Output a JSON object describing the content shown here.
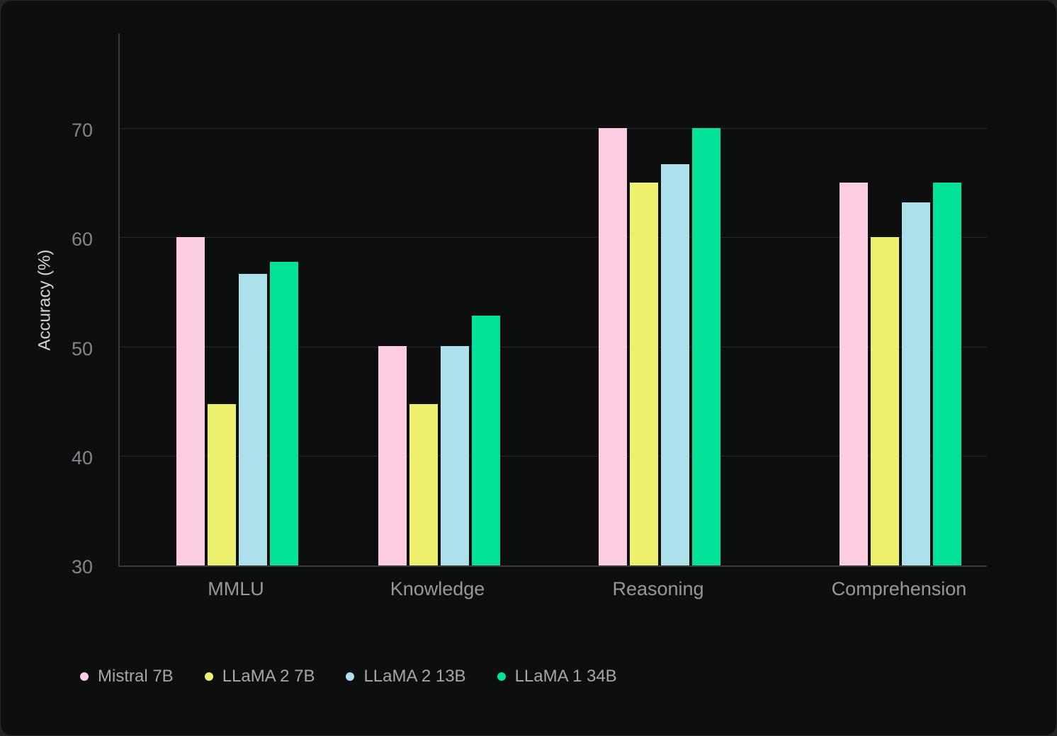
{
  "chart_data": {
    "type": "bar",
    "title": "",
    "ylabel": "Accuracy (%)",
    "xlabel": "",
    "categories": [
      "MMLU",
      "Knowledge",
      "Reasoning",
      "Comprehension"
    ],
    "series": [
      {
        "name": "Mistral 7B",
        "color": "#fccde2",
        "values": [
          60.1,
          50.1,
          70.1,
          65.1
        ]
      },
      {
        "name": "LLaMA 2 7B",
        "color": "#edf06f",
        "values": [
          44.8,
          44.8,
          65.1,
          60.1
        ]
      },
      {
        "name": "LLaMA 2 13B",
        "color": "#ace0ea",
        "values": [
          56.7,
          50.1,
          66.8,
          63.3
        ]
      },
      {
        "name": "LLaMA 1 34B",
        "color": "#03e29a",
        "values": [
          57.8,
          52.9,
          70.1,
          65.1
        ]
      }
    ],
    "yticks": [
      30,
      40,
      50,
      60,
      70
    ],
    "ylim": [
      30,
      78.9
    ],
    "grid": true,
    "legend_position": "bottom-left"
  }
}
